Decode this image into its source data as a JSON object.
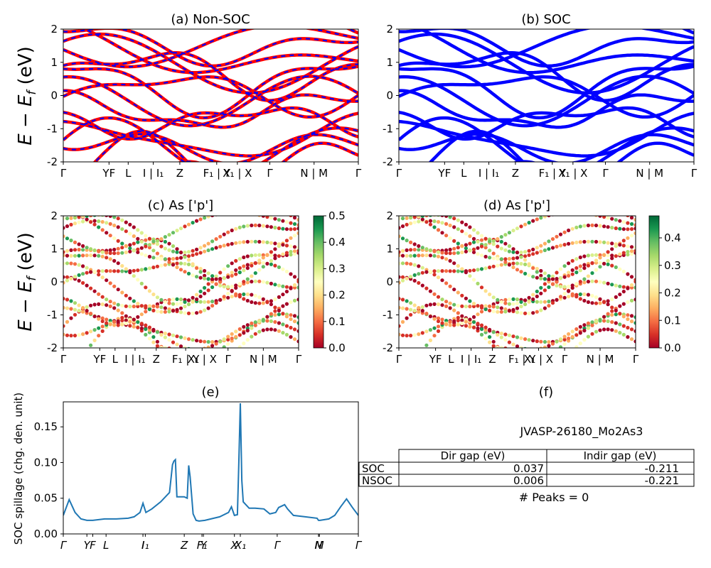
{
  "bands": {
    "kpoint_labels": [
      "Γ",
      "YF",
      "L",
      "I | I₁",
      "Z",
      "F₁ | Y",
      "X₁ | X",
      "Γ",
      "N | M",
      "Γ"
    ],
    "kpoint_pos_top": [
      0,
      0.155,
      0.22,
      0.305,
      0.395,
      0.52,
      0.59,
      0.7,
      0.85,
      1.0
    ],
    "kpoint_pos_mid": [
      0,
      0.155,
      0.22,
      0.305,
      0.395,
      0.52,
      0.59,
      0.7,
      0.85,
      1.0
    ],
    "ylim": [
      -2,
      2
    ],
    "yticks": [
      -2,
      -1,
      0,
      1,
      2
    ],
    "ylabel": "E − E_f (eV)",
    "colors": {
      "nonsoc_main": "#ff0000",
      "nonsoc_dash": "#0000ff",
      "soc": "#0000ff"
    }
  },
  "panels": {
    "a_title": "(a) Non-SOC",
    "b_title": "(b) SOC",
    "c_title": "(c)  As ['p']",
    "d_title": "(d) As ['p']",
    "e_title": "(e)",
    "f_title": "(f)"
  },
  "colorbar_c": {
    "ticks": [
      "0.0",
      "0.1",
      "0.2",
      "0.3",
      "0.4",
      "0.5"
    ],
    "max": 0.5
  },
  "colorbar_d": {
    "ticks": [
      "0.0",
      "0.1",
      "0.2",
      "0.3",
      "0.4"
    ],
    "max": 0.48
  },
  "chart_data": [
    {
      "type": "line",
      "title": "(e)",
      "ylabel": "SOC spillage (chg. den. unit)",
      "ylim": [
        0,
        0.185
      ],
      "yticks": [
        "0.00",
        "0.05",
        "0.10",
        "0.15"
      ],
      "xtick_labels": [
        "Γ",
        "Y",
        "F",
        "L",
        "I",
        "I₁",
        "Z",
        "F₁",
        "Y",
        "X",
        "X₁",
        "Γ",
        "N",
        "M",
        "Γ"
      ],
      "xtick_pos": [
        0,
        0.08,
        0.1,
        0.145,
        0.27,
        0.278,
        0.41,
        0.47,
        0.475,
        0.58,
        0.6,
        0.725,
        0.865,
        0.868,
        1.0
      ],
      "series": [
        {
          "x": [
            0,
            0.02,
            0.04,
            0.06,
            0.08,
            0.1,
            0.14,
            0.18,
            0.22,
            0.24,
            0.26,
            0.27,
            0.28,
            0.3,
            0.33,
            0.36,
            0.37,
            0.375,
            0.38,
            0.385,
            0.39,
            0.41,
            0.42,
            0.425,
            0.43,
            0.44,
            0.45,
            0.46,
            0.48,
            0.5,
            0.53,
            0.56,
            0.57,
            0.58,
            0.59,
            0.595,
            0.6,
            0.605,
            0.61,
            0.63,
            0.65,
            0.68,
            0.7,
            0.72,
            0.73,
            0.75,
            0.76,
            0.78,
            0.82,
            0.86,
            0.865,
            0.87,
            0.9,
            0.92,
            0.94,
            0.96,
            0.98,
            1.0
          ],
          "y": [
            0.026,
            0.048,
            0.03,
            0.021,
            0.019,
            0.019,
            0.021,
            0.021,
            0.022,
            0.024,
            0.03,
            0.043,
            0.03,
            0.035,
            0.045,
            0.058,
            0.097,
            0.102,
            0.104,
            0.052,
            0.052,
            0.052,
            0.05,
            0.096,
            0.08,
            0.028,
            0.019,
            0.018,
            0.019,
            0.021,
            0.024,
            0.03,
            0.038,
            0.026,
            0.027,
            0.1,
            0.183,
            0.075,
            0.045,
            0.036,
            0.036,
            0.035,
            0.028,
            0.03,
            0.037,
            0.041,
            0.035,
            0.026,
            0.024,
            0.022,
            0.019,
            0.019,
            0.021,
            0.026,
            0.038,
            0.049,
            0.037,
            0.026
          ]
        }
      ]
    }
  ],
  "table": {
    "title": "JVASP-26180_Mo2As3",
    "headers": [
      "",
      "Dir gap (eV)",
      "Indir gap (eV)"
    ],
    "rows": [
      {
        "label": "SOC",
        "dir": "0.037",
        "indir": "-0.211"
      },
      {
        "label": "NSOC",
        "dir": "0.006",
        "indir": "-0.221"
      }
    ],
    "footer": "# Peaks = 0"
  }
}
